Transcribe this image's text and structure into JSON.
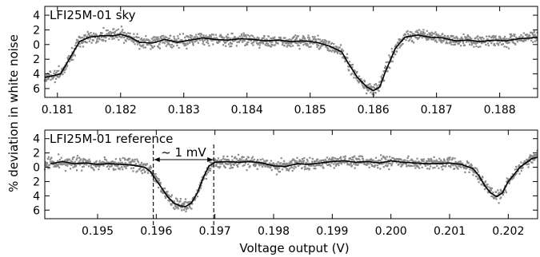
{
  "figure": {
    "shared_ylabel": "% deviation in white noise",
    "shared_xlabel": "Voltage output (V)"
  },
  "chart_data": [
    {
      "type": "line",
      "panel_label": "LFI25M-01 sky",
      "xlim": [
        0.1808,
        0.1886
      ],
      "ylim": [
        7.2,
        -5.2
      ],
      "y_inverted": true,
      "xticks": [
        0.181,
        0.182,
        0.183,
        0.184,
        0.185,
        0.186,
        0.187,
        0.188
      ],
      "xtick_labels": [
        "0.181",
        "0.182",
        "0.183",
        "0.184",
        "0.185",
        "0.186",
        "0.187",
        "0.188"
      ],
      "yticks": [
        -4,
        -2,
        0,
        2,
        4,
        6
      ],
      "ytick_labels": [
        "4",
        "2",
        "0",
        "2",
        "4",
        "6"
      ],
      "series": [
        {
          "kind": "fit_line",
          "color": "#000000",
          "x": [
            0.1808,
            0.18105,
            0.1812,
            0.18135,
            0.1815,
            0.1817,
            0.1819,
            0.182,
            0.18215,
            0.1823,
            0.1825,
            0.1827,
            0.1829,
            0.1831,
            0.1833,
            0.1835,
            0.1837,
            0.1839,
            0.1841,
            0.1843,
            0.1845,
            0.1847,
            0.1849,
            0.1851,
            0.1853,
            0.1855,
            0.1856,
            0.18575,
            0.1859,
            0.186,
            0.1861,
            0.1862,
            0.18635,
            0.1865,
            0.1867,
            0.1869,
            0.1871,
            0.1873,
            0.1875,
            0.1877,
            0.1879,
            0.1881,
            0.1883,
            0.1885,
            0.1886
          ],
          "y": [
            4.5,
            4.0,
            1.8,
            -0.4,
            -1.0,
            -1.2,
            -1.2,
            -1.4,
            -1.0,
            -0.3,
            -0.2,
            -0.7,
            -0.3,
            -0.6,
            -0.9,
            -0.7,
            -0.6,
            -0.8,
            -0.7,
            -0.5,
            -0.6,
            -0.4,
            -0.5,
            -0.3,
            0.2,
            1.0,
            2.5,
            4.5,
            5.8,
            6.3,
            5.8,
            3.5,
            0.5,
            -1.0,
            -1.3,
            -1.0,
            -0.9,
            -0.5,
            -0.6,
            -0.4,
            -0.6,
            -0.5,
            -0.8,
            -0.9,
            -1.0
          ]
        }
      ]
    },
    {
      "type": "line",
      "panel_label": "LFI25M-01 reference",
      "xlim": [
        0.1941,
        0.2025
      ],
      "ylim": [
        7.2,
        -5.2
      ],
      "y_inverted": true,
      "xticks": [
        0.195,
        0.196,
        0.197,
        0.198,
        0.199,
        0.2,
        0.201,
        0.202
      ],
      "xtick_labels": [
        "0.195",
        "0.196",
        "0.197",
        "0.198",
        "0.199",
        "0.200",
        "0.201",
        "0.202"
      ],
      "yticks": [
        -4,
        -2,
        0,
        2,
        4,
        6
      ],
      "ytick_labels": [
        "4",
        "2",
        "0",
        "2",
        "4",
        "6"
      ],
      "annotation": {
        "text": "~ 1 mV",
        "x_start": 0.19595,
        "x_end": 0.19698
      },
      "series": [
        {
          "kind": "fit_line",
          "color": "#000000",
          "x": [
            0.1942,
            0.1944,
            0.1946,
            0.1948,
            0.195,
            0.1952,
            0.1954,
            0.1956,
            0.1958,
            0.1959,
            0.196,
            0.1961,
            0.1962,
            0.1963,
            0.1964,
            0.1965,
            0.1966,
            0.1967,
            0.1968,
            0.1969,
            0.197,
            0.1972,
            0.1974,
            0.1976,
            0.1978,
            0.198,
            0.1982,
            0.1984,
            0.1986,
            0.1988,
            0.199,
            0.1992,
            0.1994,
            0.1996,
            0.1998,
            0.2,
            0.2002,
            0.2004,
            0.2006,
            0.2008,
            0.201,
            0.2012,
            0.2014,
            0.2015,
            0.2016,
            0.2017,
            0.2018,
            0.2019,
            0.202,
            0.2022,
            0.2024,
            0.2025
          ],
          "y": [
            -0.5,
            -0.8,
            -0.5,
            -0.6,
            -0.4,
            -0.5,
            -0.4,
            -0.3,
            0.0,
            0.6,
            1.8,
            3.0,
            4.2,
            5.0,
            5.4,
            5.5,
            5.0,
            3.6,
            1.5,
            -0.2,
            -0.7,
            -0.8,
            -0.7,
            -0.8,
            -0.6,
            -0.2,
            -0.1,
            -0.5,
            -0.4,
            -0.6,
            -0.8,
            -0.9,
            -0.7,
            -0.8,
            -0.6,
            -0.9,
            -0.7,
            -0.6,
            -0.5,
            -0.5,
            -0.6,
            -0.4,
            0.2,
            1.2,
            2.6,
            3.6,
            4.1,
            3.6,
            2.0,
            0.0,
            -1.2,
            -1.4
          ]
        }
      ]
    }
  ]
}
